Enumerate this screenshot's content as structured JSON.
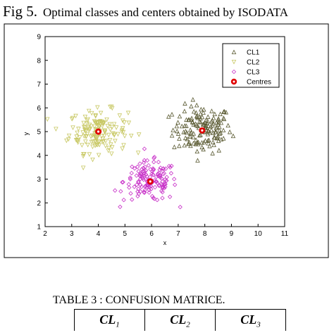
{
  "figure": {
    "label": "Fig 5.",
    "title": "Optimal classes and centers obtained by ISODATA"
  },
  "chart_data": {
    "type": "scatter",
    "title": "Optimal classes and centers obtained by ISODATA",
    "xlabel": "x",
    "ylabel": "y",
    "xlim": [
      2,
      11
    ],
    "ylim": [
      1,
      9
    ],
    "xticks": [
      2,
      3,
      4,
      5,
      6,
      7,
      8,
      9,
      10,
      11
    ],
    "yticks": [
      1,
      2,
      3,
      4,
      5,
      6,
      7,
      8,
      9
    ],
    "legend": "top-right",
    "series": [
      {
        "name": "CL1",
        "color": "#5a5a32",
        "marker": "triangle",
        "center": [
          7.9,
          5.1
        ],
        "spread": [
          0.55,
          0.5
        ],
        "count": 150
      },
      {
        "name": "CL2",
        "color": "#c8c864",
        "marker": "triangle-down",
        "center": [
          4.0,
          5.0
        ],
        "spread": [
          0.55,
          0.45
        ],
        "count": 150
      },
      {
        "name": "CL3",
        "color": "#c832c8",
        "marker": "diamond",
        "center": [
          5.95,
          2.9
        ],
        "spread": [
          0.5,
          0.42
        ],
        "count": 150
      },
      {
        "name": "Centres",
        "color": "#e00000",
        "marker": "circle",
        "x": [
          7.9,
          4.0,
          5.95
        ],
        "y": [
          5.05,
          5.0,
          2.9
        ]
      }
    ]
  },
  "table": {
    "title": "TABLE 3 :   CONFUSION MATRICE.",
    "headers": [
      {
        "main": "CL",
        "sub": "1"
      },
      {
        "main": "CL",
        "sub": "2"
      },
      {
        "main": "CL",
        "sub": "3"
      }
    ]
  }
}
